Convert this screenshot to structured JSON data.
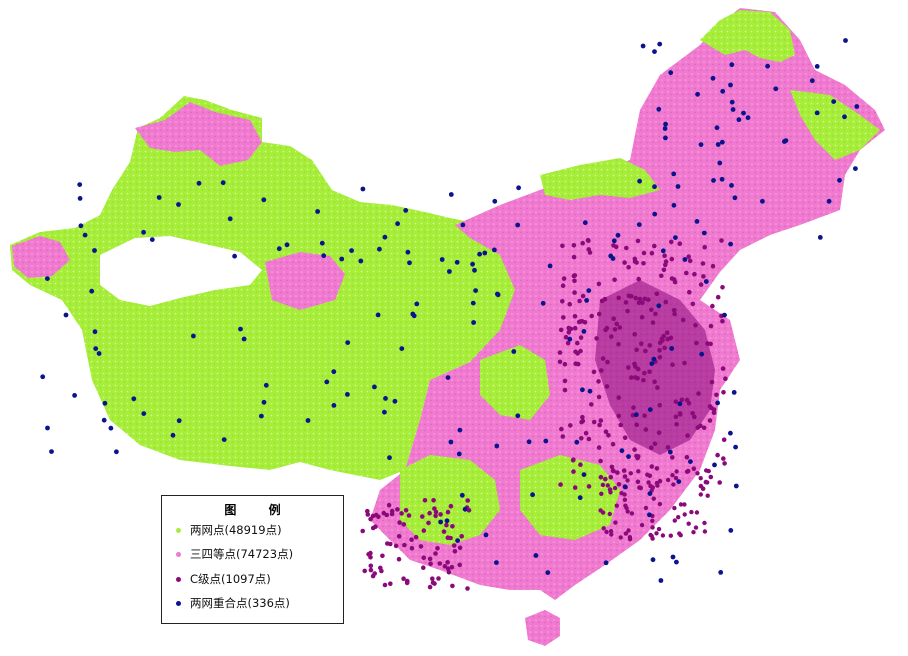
{
  "legend": {
    "title": "图 例",
    "items": [
      {
        "label": "两网点(48919点)",
        "color": "#a6ee3a"
      },
      {
        "label": "三四等点(74723点)",
        "color": "#f07ad0"
      },
      {
        "label": "C级点(1097点)",
        "color": "#8a0a7a"
      },
      {
        "label": "两网重合点(336点)",
        "color": "#0a148c"
      }
    ]
  },
  "colors": {
    "green_network": "#a6ee3a",
    "pink_network": "#f07ad0",
    "c_grade": "#8a0a7a",
    "overlap": "#0a148c",
    "background": "#ffffff"
  }
}
